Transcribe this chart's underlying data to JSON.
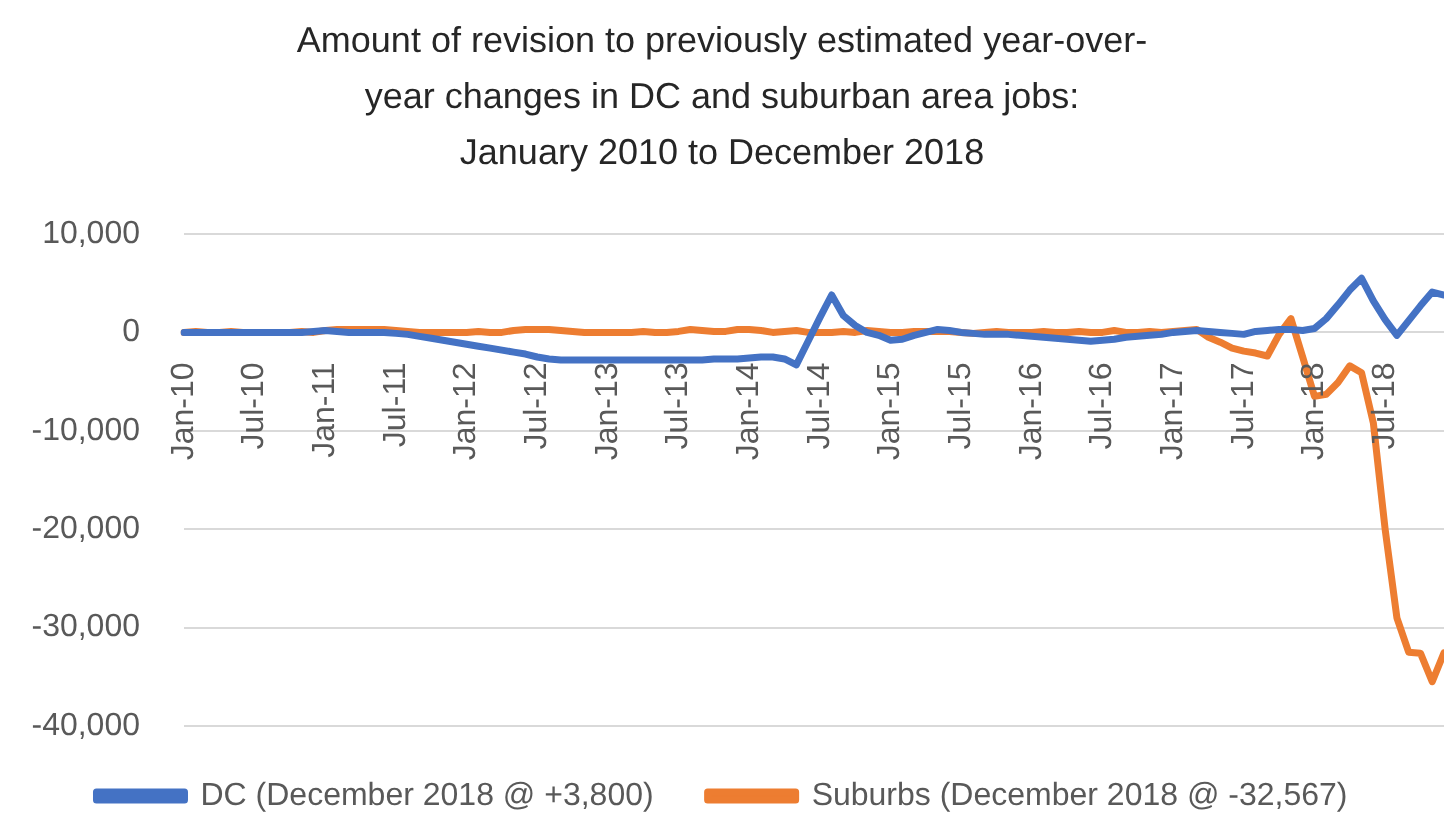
{
  "chart_data": {
    "type": "line",
    "title": "Amount of revision to previously estimated year-over-year changes in DC and suburban area jobs:",
    "subtitle": "January 2010 to December 2018",
    "categories": [
      "Jan-10",
      null,
      null,
      null,
      null,
      null,
      "Jul-10",
      null,
      null,
      null,
      null,
      null,
      "Jan-11",
      null,
      null,
      null,
      null,
      null,
      "Jul-11",
      null,
      null,
      null,
      null,
      null,
      "Jan-12",
      null,
      null,
      null,
      null,
      null,
      "Jul-12",
      null,
      null,
      null,
      null,
      null,
      "Jan-13",
      null,
      null,
      null,
      null,
      null,
      "Jul-13",
      null,
      null,
      null,
      null,
      null,
      "Jan-14",
      null,
      null,
      null,
      null,
      null,
      "Jul-14",
      null,
      null,
      null,
      null,
      null,
      "Jan-15",
      null,
      null,
      null,
      null,
      null,
      "Jul-15",
      null,
      null,
      null,
      null,
      null,
      "Jan-16",
      null,
      null,
      null,
      null,
      null,
      "Jul-16",
      null,
      null,
      null,
      null,
      null,
      "Jan-17",
      null,
      null,
      null,
      null,
      null,
      "Jul-17",
      null,
      null,
      null,
      null,
      null,
      "Jan-18",
      null,
      null,
      null,
      null,
      null,
      "Jul-18",
      null,
      null,
      null,
      null,
      null
    ],
    "series": [
      {
        "name": "DC (December 2018 @ +3,800)",
        "color": "#4472c4",
        "values": [
          0,
          0,
          0,
          0,
          0,
          0,
          0,
          0,
          0,
          0,
          0,
          100,
          200,
          100,
          0,
          0,
          0,
          0,
          -100,
          -200,
          -400,
          -600,
          -800,
          -1000,
          -1200,
          -1400,
          -1600,
          -1800,
          -2000,
          -2200,
          -2500,
          -2700,
          -2800,
          -2800,
          -2800,
          -2800,
          -2800,
          -2800,
          -2800,
          -2800,
          -2800,
          -2800,
          -2800,
          -2800,
          -2800,
          -2700,
          -2700,
          -2700,
          -2600,
          -2500,
          -2500,
          -2700,
          -3300,
          -900,
          1500,
          3800,
          1700,
          700,
          0,
          -300,
          -800,
          -700,
          -300,
          0,
          300,
          200,
          0,
          -100,
          -200,
          -200,
          -200,
          -300,
          -400,
          -500,
          -600,
          -700,
          -800,
          -900,
          -800,
          -700,
          -500,
          -400,
          -300,
          -200,
          0,
          100,
          200,
          100,
          0,
          -100,
          -200,
          100,
          200,
          300,
          300,
          200,
          400,
          1400,
          2800,
          4300,
          5500,
          3200,
          1300,
          -300,
          1200,
          2700,
          4100,
          3800
        ]
      },
      {
        "name": "Suburbs (December 2018 @ -32,567)",
        "color": "#ed7d31",
        "values": [
          0,
          100,
          0,
          0,
          100,
          0,
          0,
          0,
          0,
          0,
          100,
          0,
          200,
          300,
          300,
          300,
          300,
          300,
          200,
          100,
          0,
          0,
          0,
          0,
          0,
          100,
          0,
          0,
          200,
          300,
          300,
          300,
          200,
          100,
          0,
          0,
          0,
          0,
          0,
          100,
          0,
          0,
          100,
          300,
          200,
          100,
          100,
          300,
          300,
          200,
          0,
          100,
          200,
          0,
          0,
          0,
          100,
          0,
          200,
          100,
          0,
          0,
          100,
          100,
          100,
          100,
          0,
          -100,
          0,
          100,
          0,
          0,
          0,
          100,
          0,
          0,
          100,
          0,
          0,
          200,
          0,
          0,
          100,
          0,
          100,
          200,
          300,
          -500,
          -1000,
          -1600,
          -1900,
          -2100,
          -2400,
          -200,
          1400,
          -2500,
          -6500,
          -6300,
          -5100,
          -3400,
          -4100,
          -9200,
          -20000,
          -29000,
          -32500,
          -32600,
          -35500,
          -32567
        ]
      }
    ],
    "ylim": [
      -40000,
      10000
    ],
    "yticks": [
      {
        "value": -40000,
        "label": "-40,000"
      },
      {
        "value": -30000,
        "label": "-30,000"
      },
      {
        "value": -20000,
        "label": "-20,000"
      },
      {
        "value": -10000,
        "label": "-10,000"
      },
      0,
      {
        "value": 10000,
        "label": "10,000"
      }
    ],
    "grid": "y",
    "legend": "bottom",
    "marker": "none"
  }
}
